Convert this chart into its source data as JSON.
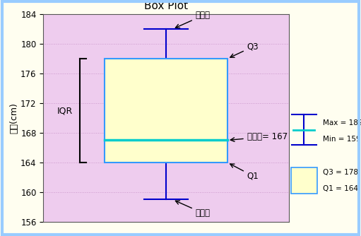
{
  "title": "Box Plot",
  "ylabel": "身高(cm)",
  "ylim": [
    156,
    184
  ],
  "yticks": [
    156,
    160,
    164,
    168,
    172,
    176,
    180,
    184
  ],
  "Q1": 164,
  "Q3": 178,
  "median": 167,
  "whisker_min": 159,
  "whisker_max": 182,
  "box_facecolor": "#ffffcc",
  "box_edgecolor": "#3399ff",
  "median_color": "#00cccc",
  "whisker_color": "#0000cc",
  "background_plot": "#eeccee",
  "background_fig": "#fffef0",
  "border_color": "#99ccff",
  "grid_color": "#cc99cc",
  "ann_max": "最大値",
  "ann_min": "最小値",
  "ann_q3": "Q3",
  "ann_q1": "Q1",
  "ann_median": "中位數= 167",
  "iqr_label": "IQR"
}
